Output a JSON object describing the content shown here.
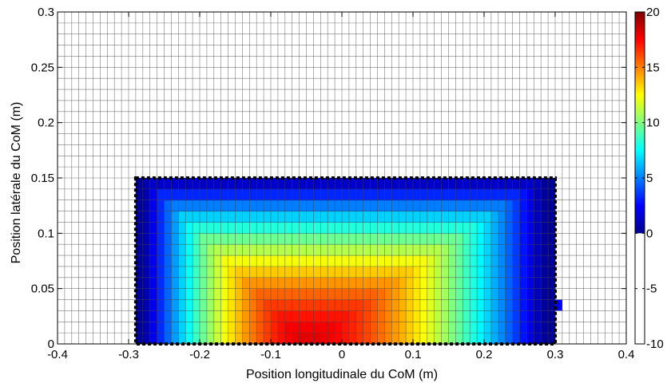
{
  "chart_data": {
    "type": "heatmap",
    "xlabel": "Position longitudinale du CoM (m)",
    "ylabel": "Position latérale du CoM (m)",
    "xlim": [
      -0.4,
      0.4
    ],
    "ylim": [
      0,
      0.3
    ],
    "x_ticks": [
      "-0.4",
      "-0.3",
      "-0.2",
      "-0.1",
      "0",
      "0.1",
      "0.2",
      "0.3",
      "0.4"
    ],
    "y_ticks": [
      "0",
      "0.05",
      "0.1",
      "0.15",
      "0.2",
      "0.25",
      "0.3"
    ],
    "grid_step": 0.01,
    "grid": true,
    "colormap": "jet",
    "colorbar": {
      "range": [
        -10,
        20
      ],
      "color_range": [
        0,
        20
      ],
      "ticks": [
        "-10",
        "-5",
        "0",
        "5",
        "10",
        "15",
        "20"
      ]
    },
    "region": {
      "x_range": [
        -0.29,
        0.3
      ],
      "y_range": [
        0,
        0.15
      ],
      "boundary_style": "black dotted",
      "peak_value": 18,
      "peak_location": [
        -0.05,
        0
      ]
    },
    "extra_cell": {
      "x": 0.305,
      "y": 0.035,
      "value": 0
    }
  }
}
